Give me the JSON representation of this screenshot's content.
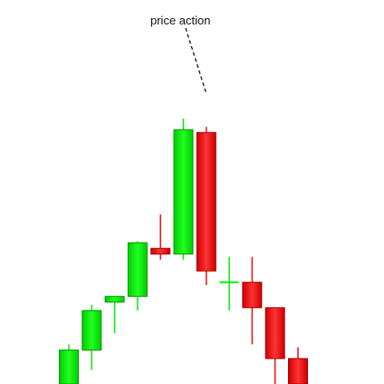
{
  "chart_data": {
    "type": "candlestick",
    "title": "",
    "xlabel": "",
    "ylabel": "",
    "axes_visible": false,
    "grid": false,
    "ylim": [
      0,
      100
    ],
    "colors": {
      "bullish": "#00ee00",
      "bearish": "#ee1111"
    },
    "candles": [
      {
        "open": 0,
        "close": 12,
        "high": 14,
        "low": 0
      },
      {
        "open": 12,
        "close": 26,
        "high": 28,
        "low": 5
      },
      {
        "open": 29,
        "close": 31,
        "high": 31,
        "low": 18
      },
      {
        "open": 31,
        "close": 50,
        "high": 50.5,
        "low": 26
      },
      {
        "open": 48,
        "close": 46,
        "high": 60,
        "low": 44
      },
      {
        "open": 46,
        "close": 90,
        "high": 94,
        "low": 44
      },
      {
        "open": 89,
        "close": 40,
        "high": 91,
        "low": 35
      },
      {
        "open": 36,
        "close": 36,
        "high": 45,
        "low": 26
      },
      {
        "open": 36,
        "close": 27,
        "high": 45,
        "low": 14
      },
      {
        "open": 27,
        "close": 9,
        "high": 27,
        "low": 0
      },
      {
        "open": 9,
        "close": 0,
        "high": 13,
        "low": 0
      }
    ],
    "annotations": [
      {
        "text": "price action",
        "target_candle": 6,
        "style": "dashed"
      }
    ]
  }
}
